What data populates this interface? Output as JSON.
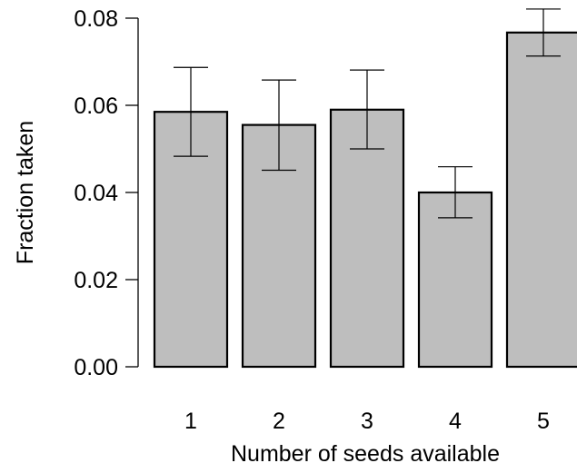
{
  "chart_data": {
    "type": "bar",
    "title": "",
    "xlabel": "Number of seeds available",
    "ylabel": "Fraction taken",
    "categories": [
      "1",
      "2",
      "3",
      "4",
      "5"
    ],
    "values": [
      0.0585,
      0.0555,
      0.059,
      0.04,
      0.0767
    ],
    "error_low": [
      0.0483,
      0.0451,
      0.05,
      0.0342,
      0.0713
    ],
    "error_high": [
      0.0687,
      0.0658,
      0.0681,
      0.0459,
      0.0821
    ],
    "ylim": [
      0,
      0.08
    ],
    "yticks": [
      "0.00",
      "0.02",
      "0.04",
      "0.06",
      "0.08"
    ],
    "bar_color": "#bebebe",
    "grid": false,
    "legend": "none"
  }
}
